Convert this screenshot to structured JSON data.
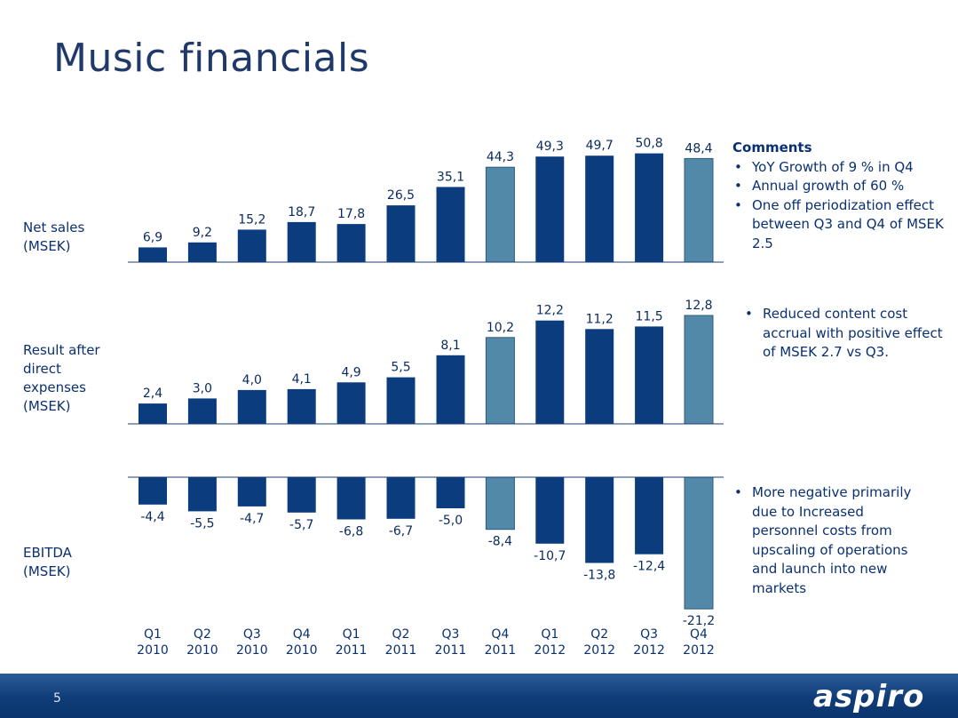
{
  "title": "Music financials",
  "row_labels": {
    "net_sales": "Net sales\n(MSEK)",
    "result": "Result after\ndirect\nexpenses\n(MSEK)",
    "ebitda": "EBITDA\n(MSEK)"
  },
  "comments": {
    "net_sales": {
      "heading": "Comments",
      "bullets": [
        "YoY Growth of 9 % in Q4",
        "Annual growth of 60 %",
        "One off periodization effect between Q3 and Q4 of MSEK 2.5"
      ]
    },
    "result": {
      "bullets": [
        "Reduced content cost accrual with positive effect of MSEK 2.7 vs Q3."
      ]
    },
    "ebitda": {
      "bullets": [
        "More negative primarily due to Increased personnel costs from upscaling of operations and launch into new markets"
      ]
    }
  },
  "colors": {
    "primary": "#0a3c7e",
    "highlight": "#5389a8",
    "text": "#0a3072"
  },
  "chart_data": {
    "type": "bar",
    "categories": [
      "Q1\n2010",
      "Q2\n2010",
      "Q3\n2010",
      "Q4\n2010",
      "Q1\n2011",
      "Q2\n2011",
      "Q3\n2011",
      "Q4\n2011",
      "Q1\n2012",
      "Q2\n2012",
      "Q3\n2012",
      "Q4\n2012"
    ],
    "highlighted": [
      "Q4\n2011",
      "Q4\n2012"
    ],
    "series": [
      {
        "key": "net_sales",
        "values": [
          6.9,
          9.2,
          15.2,
          18.7,
          17.8,
          26.5,
          35.1,
          44.3,
          49.3,
          49.7,
          50.8,
          48.4
        ],
        "labels": [
          "6,9",
          "9,2",
          "15,2",
          "18,7",
          "17,8",
          "26,5",
          "35,1",
          "44,3",
          "49,3",
          "49,7",
          "50,8",
          "48,4"
        ]
      },
      {
        "key": "result",
        "values": [
          2.4,
          3.0,
          4.0,
          4.1,
          4.9,
          5.5,
          8.1,
          10.2,
          12.2,
          11.2,
          11.5,
          12.8
        ],
        "labels": [
          "2,4",
          "3,0",
          "4,0",
          "4,1",
          "4,9",
          "5,5",
          "8,1",
          "10,2",
          "12,2",
          "11,2",
          "11,5",
          "12,8"
        ]
      },
      {
        "key": "ebitda",
        "values": [
          -4.4,
          -5.5,
          -4.7,
          -5.7,
          -6.8,
          -6.7,
          -5.0,
          -8.4,
          -10.7,
          -13.8,
          -12.4,
          -21.2
        ],
        "labels": [
          "-4,4",
          "-5,5",
          "-4,7",
          "-5,7",
          "-6,8",
          "-6,7",
          "-5,0",
          "-8,4",
          "-10,7",
          "-13,8",
          "-12,4",
          "-21,2"
        ]
      }
    ]
  },
  "footer": {
    "page_number": "5",
    "logo": "aspiro"
  }
}
